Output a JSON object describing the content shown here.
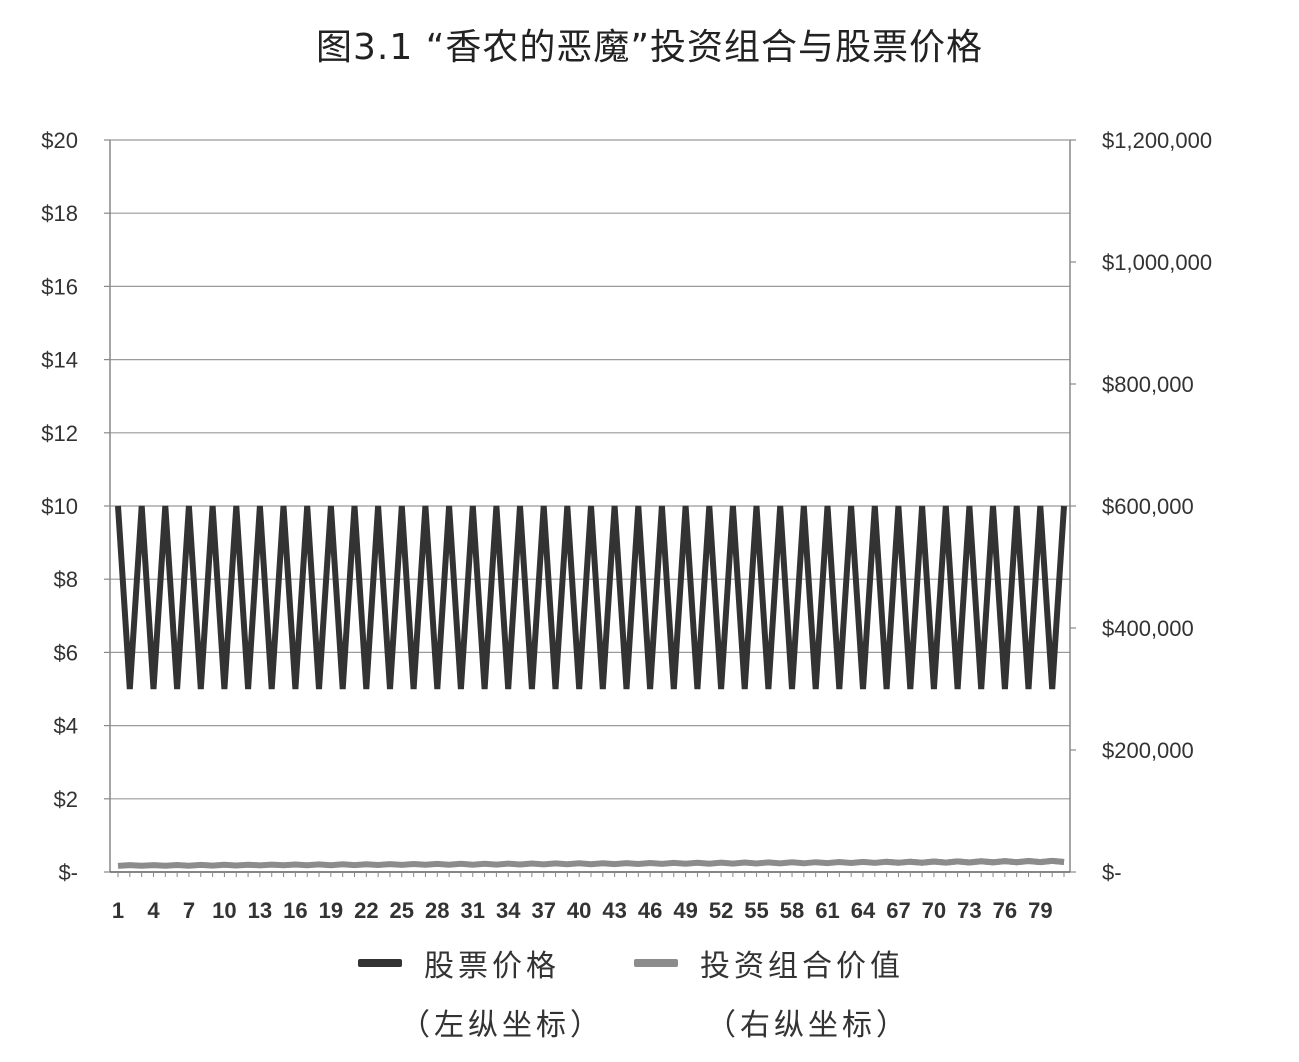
{
  "chart_data": {
    "type": "line",
    "title": "图3.1 “香农的恶魔”投资组合与股票价格",
    "x_start": 1,
    "x_end": 81,
    "x_tick_labels": [
      "1",
      "4",
      "7",
      "10",
      "13",
      "16",
      "19",
      "22",
      "25",
      "28",
      "31",
      "34",
      "37",
      "40",
      "43",
      "46",
      "49",
      "52",
      "55",
      "58",
      "61",
      "64",
      "67",
      "70",
      "73",
      "76",
      "79"
    ],
    "y_left": {
      "range": [
        0,
        20
      ],
      "tick_values": [
        0,
        2,
        4,
        6,
        8,
        10,
        12,
        14,
        16,
        18,
        20
      ],
      "tick_labels": [
        "$-",
        "$2",
        "$4",
        "$6",
        "$8",
        "$10",
        "$12",
        "$14",
        "$16",
        "$18",
        "$20"
      ]
    },
    "y_right": {
      "range": [
        0,
        1200000
      ],
      "tick_values": [
        0,
        200000,
        400000,
        600000,
        800000,
        1000000,
        1200000
      ],
      "tick_labels": [
        "$-",
        "$200,000",
        "$400,000",
        "$600,000",
        "$800,000",
        "$1,000,000",
        "$1,200,000"
      ]
    },
    "grid": true,
    "legend_position": "bottom",
    "series": [
      {
        "name": "股票价格",
        "axis_note": "（左纵坐标）",
        "axis": "left",
        "color": "#333333",
        "pattern": "alternating",
        "high": 10,
        "low": 5
      },
      {
        "name": "投资组合价值",
        "axis_note": "（右纵坐标）",
        "axis": "right",
        "color": "#8c8c8c",
        "pattern": "geometric-zigzag",
        "start": 10000,
        "up_factor": 1.125,
        "down_factor": 0.9
      }
    ]
  }
}
